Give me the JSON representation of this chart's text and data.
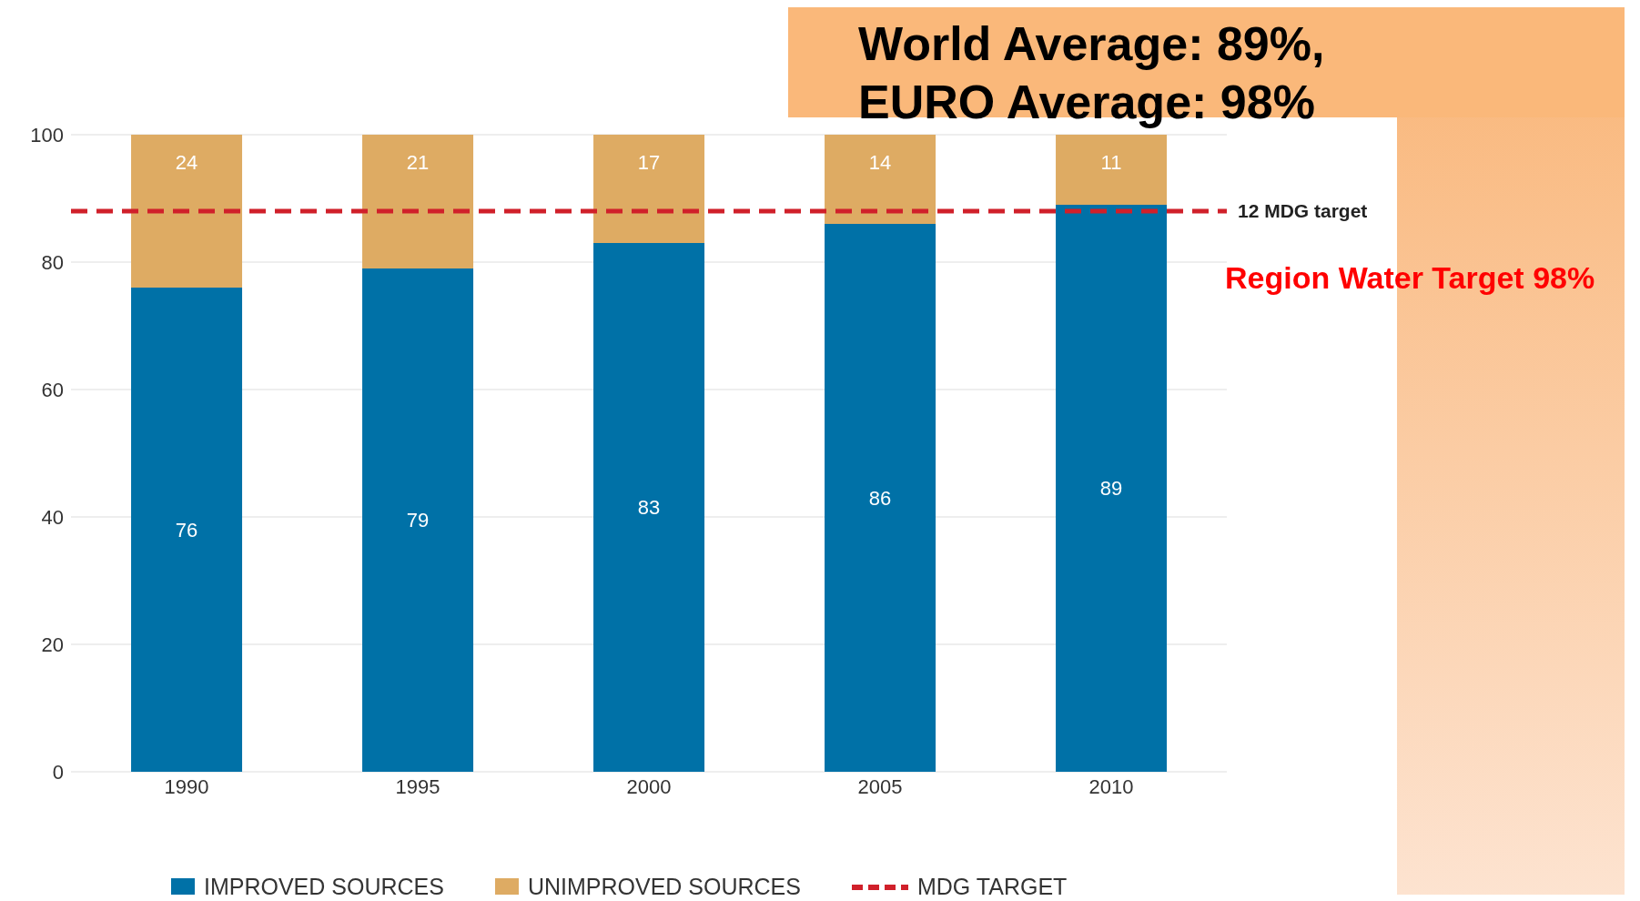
{
  "chart_data": {
    "type": "bar",
    "stacked": true,
    "categories": [
      "1990",
      "1995",
      "2000",
      "2005",
      "2010"
    ],
    "series": [
      {
        "name": "IMPROVED SOURCES",
        "color": "#0071a7",
        "values": [
          76,
          79,
          83,
          86,
          89
        ]
      },
      {
        "name": "UNIMPROVED SOURCES",
        "color": "#deab63",
        "values": [
          24,
          21,
          17,
          14,
          11
        ]
      }
    ],
    "ylim": [
      0,
      100
    ],
    "yticks": [
      0,
      20,
      40,
      60,
      80,
      100
    ],
    "grid": "y",
    "legend": "bottom",
    "data_labels": true,
    "ref_lines": [
      {
        "axis": "y",
        "value": 88,
        "label": "12  MDG target",
        "color": "#d0202a",
        "line_style": "dashed"
      }
    ],
    "annotations": [
      "World Average: 89%,",
      "EURO Average: 98%",
      "Region Water Target 98%",
      "MDG TARGET"
    ]
  }
}
